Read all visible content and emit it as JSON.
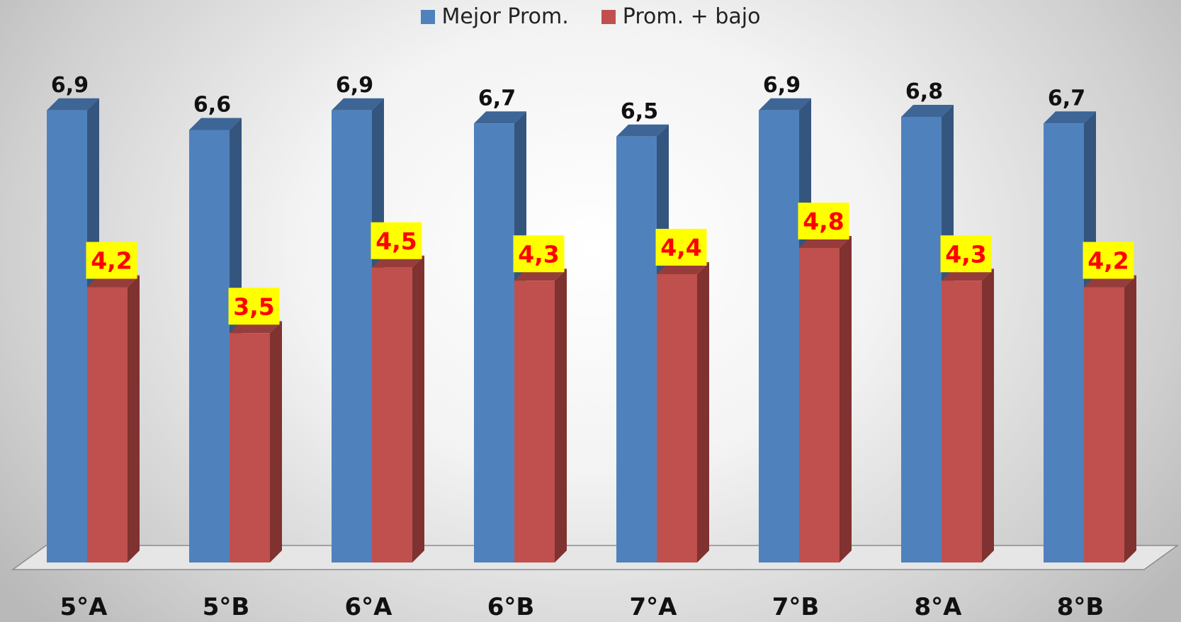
{
  "chart_data": {
    "type": "bar",
    "categories": [
      "5°A",
      "5°B",
      "6°A",
      "6°B",
      "7°A",
      "7°B",
      "8°A",
      "8°B"
    ],
    "series": [
      {
        "name": "Mejor Prom.",
        "values": [
          6.9,
          6.6,
          6.9,
          6.7,
          6.5,
          6.9,
          6.8,
          6.7
        ],
        "labels": [
          "6,9",
          "6,6",
          "6,9",
          "6,7",
          "6,5",
          "6,9",
          "6,8",
          "6,7"
        ],
        "color": "#4f81bd",
        "side_color": "#34557e",
        "top_color": "#3d6596"
      },
      {
        "name": "Prom. + bajo",
        "values": [
          4.2,
          3.5,
          4.5,
          4.3,
          4.4,
          4.8,
          4.3,
          4.2
        ],
        "labels": [
          "4,2",
          "3,5",
          "4,5",
          "4,3",
          "4,4",
          "4,8",
          "4,3",
          "4,2"
        ],
        "color": "#c0504d",
        "side_color": "#7f3230",
        "top_color": "#963d3b",
        "label_background": "#ffff00",
        "label_color": "#ff0000"
      }
    ],
    "legend_position": "top-center",
    "grid": false,
    "style": "3d-clustered-column"
  }
}
